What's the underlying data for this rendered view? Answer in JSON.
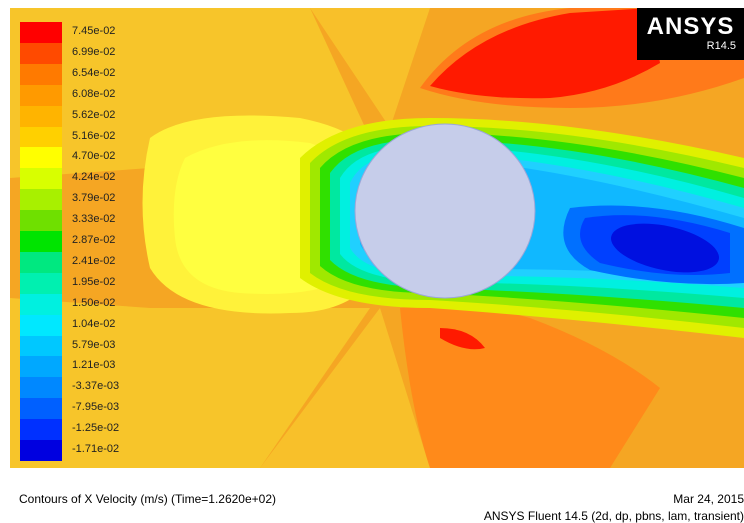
{
  "legend": {
    "labels": [
      "7.45e-02",
      "6.99e-02",
      "6.54e-02",
      "6.08e-02",
      "5.62e-02",
      "5.16e-02",
      "4.70e-02",
      "4.24e-02",
      "3.79e-02",
      "3.33e-02",
      "2.87e-02",
      "2.41e-02",
      "1.95e-02",
      "1.50e-02",
      "1.04e-02",
      "5.79e-03",
      "1.21e-03",
      "-3.37e-03",
      "-7.95e-03",
      "-1.25e-02",
      "-1.71e-02"
    ],
    "colors": [
      "#ff0000",
      "#ff4a00",
      "#ff7a00",
      "#ff9a00",
      "#ffb400",
      "#ffd000",
      "#ffff00",
      "#d8ff00",
      "#a8f000",
      "#6fe000",
      "#00e400",
      "#00e880",
      "#00f0b0",
      "#00f0e0",
      "#00e8ff",
      "#00c8ff",
      "#00a8ff",
      "#0088ff",
      "#0060ff",
      "#0030ff",
      "#0000e0"
    ]
  },
  "logo": {
    "brand": "ANSYS",
    "version": "R14.5"
  },
  "footer": {
    "title": "Contours of X Velocity (m/s)  (Time=1.2620e+02)",
    "date": "Mar 24, 2015",
    "solver": "ANSYS Fluent 14.5 (2d, dp, pbns, lam, transient)"
  }
}
